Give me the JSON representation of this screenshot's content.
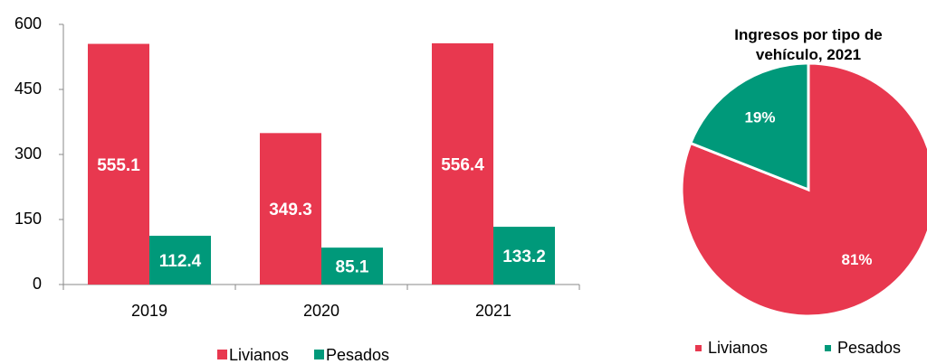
{
  "chart_data": [
    {
      "type": "bar",
      "categories": [
        "2019",
        "2020",
        "2021"
      ],
      "series": [
        {
          "name": "Livianos",
          "color": "#e8384f",
          "values": [
            555.1,
            349.3,
            556.4
          ]
        },
        {
          "name": "Pesados",
          "color": "#00997a",
          "values": [
            112.4,
            85.1,
            133.2
          ]
        }
      ],
      "ylim": [
        0,
        600
      ],
      "yticks": [
        0,
        150,
        300,
        450,
        600
      ],
      "legend": "bottom"
    },
    {
      "type": "pie",
      "title": "Ingresos por tipo de vehículo, 2021",
      "categories": [
        "Livianos",
        "Pesados"
      ],
      "values": [
        81,
        19
      ],
      "value_labels": [
        "81%",
        "19%"
      ],
      "colors": [
        "#e8384f",
        "#00997a"
      ],
      "legend": "bottom"
    }
  ]
}
